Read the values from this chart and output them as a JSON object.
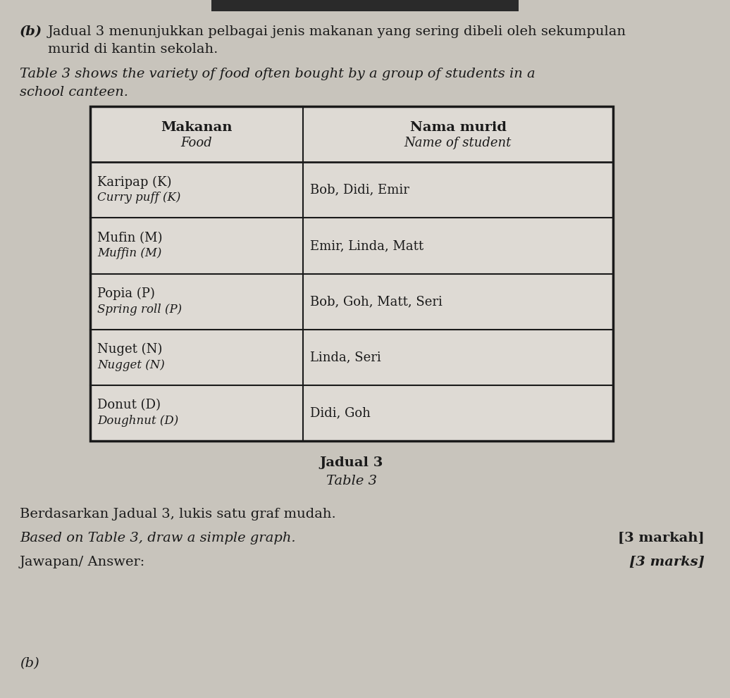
{
  "bg_color": "#c8c4bc",
  "paper_color": "#dedad4",
  "text_color": "#1a1a1a",
  "title_b_part": "(b)",
  "title_b_text": "Jadual 3 menunjukkan pelbagai jenis makanan yang sering dibeli oleh sekumpulan",
  "title_b_text2": "murid di kantin sekolah.",
  "subtitle_italic": "Table 3 shows the variety of food often bought by a group of students in a",
  "subtitle_italic2": "school canteen.",
  "table_caption1": "Jadual 3",
  "table_caption2": "Table 3",
  "col1_header1": "Makanan",
  "col1_header2": "Food",
  "col2_header1": "Nama murid",
  "col2_header2": "Name of student",
  "rows": [
    {
      "food_line1": "Karipap (K)",
      "food_line2": "Curry puff (K)",
      "students": "Bob, Didi, Emir"
    },
    {
      "food_line1": "Mufin (M)",
      "food_line2": "Muffin (M)",
      "students": "Emir, Linda, Matt"
    },
    {
      "food_line1": "Popia (P)",
      "food_line2": "Spring roll (P)",
      "students": "Bob, Goh, Matt, Seri"
    },
    {
      "food_line1": "Nuget (N)",
      "food_line2": "Nugget (N)",
      "students": "Linda, Seri"
    },
    {
      "food_line1": "Donut (D)",
      "food_line2": "Doughnut (D)",
      "students": "Didi, Goh"
    }
  ],
  "bottom_text1": "Berdasarkan Jadual 3, lukis satu graf mudah.",
  "bottom_text2_italic": "Based on Table 3, draw a simple graph.",
  "marks1": "[3 markah]",
  "marks2": "[3 marks]",
  "answer_label": "Jawapan/ Answer:",
  "part_b": "(b)"
}
